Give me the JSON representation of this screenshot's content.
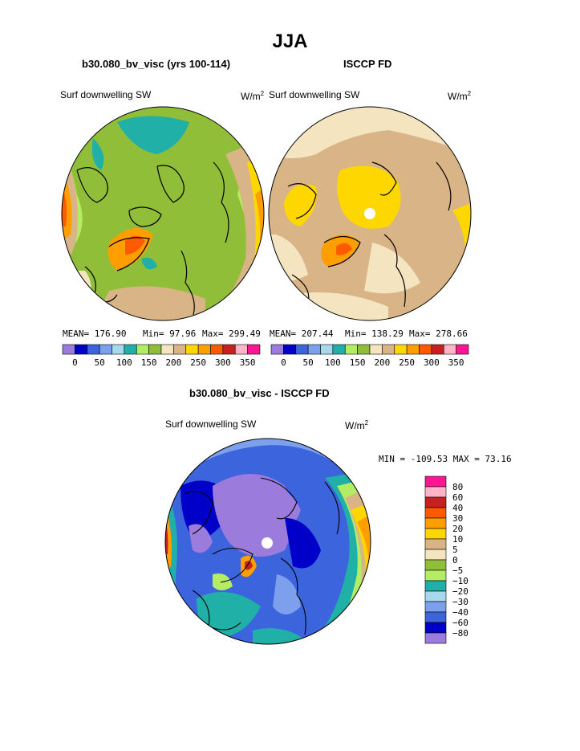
{
  "page_title": "JJA",
  "panels": [
    {
      "header": "b30.080_bv_visc (yrs 100-114)",
      "field_label": "Surf downwelling SW",
      "units": "W/m",
      "units_sup": "2",
      "stats": {
        "mean": "MEAN= 176.90",
        "min": "Min=  97.96",
        "max": "Max= 299.49"
      }
    },
    {
      "header": "ISCCP FD",
      "field_label": "Surf downwelling SW",
      "units": "W/m",
      "units_sup": "2",
      "stats": {
        "mean": "MEAN= 207.44",
        "min": "Min= 138.29",
        "max": "Max= 278.66"
      }
    }
  ],
  "diff_panel": {
    "header": "b30.080_bv_visc - ISCCP FD",
    "field_label": "Surf downwelling SW",
    "units": "W/m",
    "units_sup": "2",
    "minmax": "MIN = -109.53 MAX =  73.16"
  },
  "chart_data": [
    {
      "type": "heatmap",
      "title": "b30.080_bv_visc (yrs 100-114)",
      "variable": "Surf downwelling SW",
      "units": "W/m2",
      "statistics": {
        "mean": 176.9,
        "min": 97.96,
        "max": 299.49
      },
      "colorbar_levels": [
        0,
        25,
        50,
        75,
        100,
        125,
        150,
        175,
        200,
        225,
        250,
        275,
        300,
        325,
        350
      ],
      "colorbar_tick_labels": [
        "0",
        "50",
        "100",
        "150",
        "200",
        "250",
        "300",
        "350"
      ],
      "colorbar_colors": [
        "#9b7bdb",
        "#0000c8",
        "#3c64dc",
        "#7ca0ec",
        "#a8d8ec",
        "#20b0a8",
        "#b4ec64",
        "#90be38",
        "#f4e4c0",
        "#d8b486",
        "#ffd700",
        "#ff9e00",
        "#ff5a00",
        "#c82020",
        "#ffb4c8",
        "#ff1493"
      ],
      "projection": "north polar stereographic"
    },
    {
      "type": "heatmap",
      "title": "ISCCP FD",
      "variable": "Surf downwelling SW",
      "units": "W/m2",
      "statistics": {
        "mean": 207.44,
        "min": 138.29,
        "max": 278.66
      },
      "colorbar_levels": [
        0,
        25,
        50,
        75,
        100,
        125,
        150,
        175,
        200,
        225,
        250,
        275,
        300,
        325,
        350
      ],
      "colorbar_tick_labels": [
        "0",
        "50",
        "100",
        "150",
        "200",
        "250",
        "300",
        "350"
      ],
      "colorbar_colors": [
        "#9b7bdb",
        "#0000c8",
        "#3c64dc",
        "#7ca0ec",
        "#a8d8ec",
        "#20b0a8",
        "#b4ec64",
        "#90be38",
        "#f4e4c0",
        "#d8b486",
        "#ffd700",
        "#ff9e00",
        "#ff5a00",
        "#c82020",
        "#ffb4c8",
        "#ff1493"
      ],
      "projection": "north polar stereographic"
    },
    {
      "type": "heatmap",
      "title": "b30.080_bv_visc - ISCCP FD",
      "variable": "Surf downwelling SW",
      "units": "W/m2",
      "statistics": {
        "min": -109.53,
        "max": 73.16
      },
      "colorbar_levels": [
        -80,
        -60,
        -40,
        -30,
        -20,
        -10,
        -5,
        0,
        5,
        10,
        20,
        30,
        40,
        60,
        80
      ],
      "colorbar_tick_labels": [
        "80",
        "60",
        "40",
        "30",
        "20",
        "10",
        "5",
        "0",
        "−5",
        "−10",
        "−20",
        "−30",
        "−40",
        "−60",
        "−80"
      ],
      "colorbar_colors": [
        "#9b7bdb",
        "#0000c8",
        "#3c64dc",
        "#7ca0ec",
        "#a8d8ec",
        "#20b0a8",
        "#b4ec64",
        "#90be38",
        "#f4e4c0",
        "#d8b486",
        "#ffd700",
        "#ff9e00",
        "#ff5a00",
        "#c82020",
        "#ffb4c8",
        "#ff1493"
      ],
      "projection": "north polar stereographic"
    }
  ]
}
